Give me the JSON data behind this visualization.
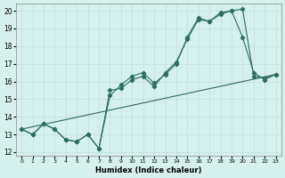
{
  "xlabel": "Humidex (Indice chaleur)",
  "xlim": [
    -0.5,
    23.5
  ],
  "ylim": [
    11.8,
    20.4
  ],
  "yticks": [
    12,
    13,
    14,
    15,
    16,
    17,
    18,
    19,
    20
  ],
  "xticks": [
    0,
    1,
    2,
    3,
    4,
    5,
    6,
    7,
    8,
    9,
    10,
    11,
    12,
    13,
    14,
    15,
    16,
    17,
    18,
    19,
    20,
    21,
    22,
    23
  ],
  "background_color": "#d6f0ee",
  "grid_color": "#c0dedd",
  "line_color": "#2a6e65",
  "line1_x": [
    0,
    1,
    2,
    3,
    4,
    5,
    6,
    7,
    8,
    9,
    10,
    11,
    12,
    13,
    14,
    15,
    16,
    17,
    18,
    19,
    20,
    21,
    22,
    23
  ],
  "line1_y": [
    13.3,
    13.0,
    13.6,
    13.3,
    12.7,
    12.6,
    13.0,
    12.2,
    15.2,
    15.8,
    16.3,
    16.5,
    15.9,
    16.4,
    17.0,
    18.5,
    19.6,
    19.4,
    19.8,
    20.0,
    20.1,
    16.3,
    16.2,
    16.4
  ],
  "line2_x": [
    0,
    1,
    2,
    3,
    4,
    5,
    6,
    7,
    8,
    9,
    10,
    11,
    12,
    13,
    14,
    15,
    16,
    17,
    18,
    19,
    20,
    21,
    22,
    23
  ],
  "line2_y": [
    13.3,
    13.0,
    13.6,
    13.3,
    12.7,
    12.6,
    13.0,
    12.2,
    15.5,
    15.6,
    16.1,
    16.3,
    15.7,
    16.5,
    17.1,
    18.4,
    19.5,
    19.4,
    19.9,
    20.0,
    18.5,
    16.5,
    16.1,
    16.4
  ],
  "line3_x": [
    0,
    23
  ],
  "line3_y": [
    13.3,
    16.4
  ]
}
